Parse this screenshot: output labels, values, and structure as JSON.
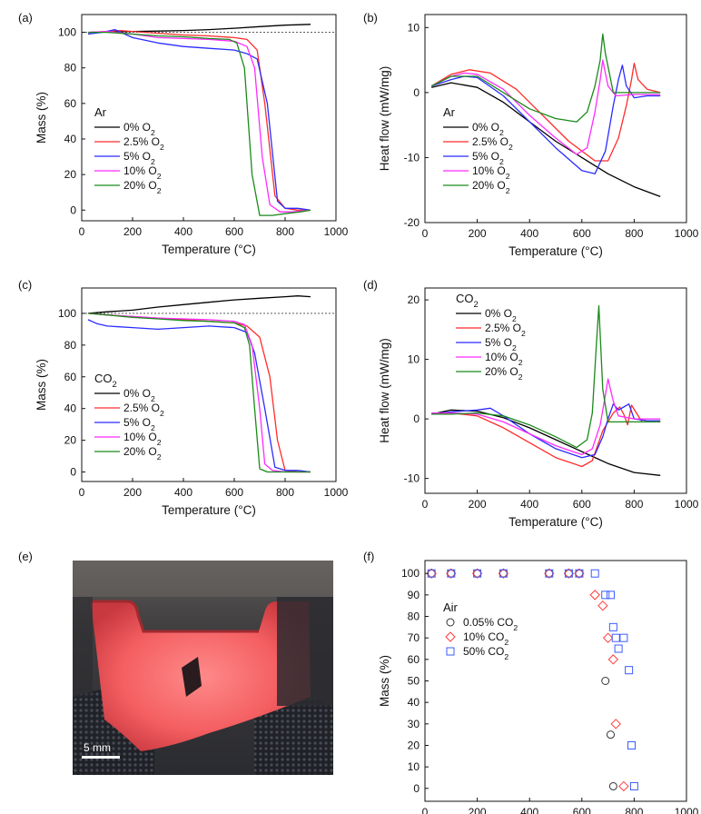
{
  "colors": {
    "s0": "#000000",
    "s1": "#ff2b2b",
    "s2": "#2b2bff",
    "s3": "#ff2bff",
    "s4": "#1a8a1a",
    "open_red": "#ff3b3b",
    "open_blue": "#3b5bff",
    "open_black": "#333333"
  },
  "scalebar": "5 mm",
  "chart_data": [
    {
      "panel": "(a)",
      "type": "line",
      "xlabel": "Temperature (°C)",
      "ylabel": "Mass (%)",
      "xlim": [
        0,
        1000
      ],
      "ylim": [
        -6,
        110
      ],
      "xticks": [
        0,
        200,
        400,
        600,
        800,
        1000
      ],
      "yticks": [
        0,
        20,
        40,
        60,
        80,
        100
      ],
      "reference_line": 100,
      "legend_title": "Ar",
      "legend_position": "center-left",
      "series": [
        {
          "name": "0% O₂",
          "color": "#000000",
          "x": [
            25,
            100,
            200,
            300,
            400,
            500,
            600,
            700,
            800,
            900
          ],
          "y": [
            100,
            100.3,
            100.5,
            100.7,
            101,
            101.5,
            102.3,
            103.2,
            104,
            104.5
          ]
        },
        {
          "name": "2.5% O₂",
          "color": "#ff2b2b",
          "x": [
            25,
            100,
            150,
            250,
            400,
            500,
            600,
            650,
            690,
            720,
            760,
            800,
            850,
            900
          ],
          "y": [
            100,
            100.5,
            101,
            100,
            98.5,
            98,
            97,
            96,
            90,
            60,
            8,
            1,
            0,
            0
          ]
        },
        {
          "name": "5% O₂",
          "color": "#2b2bff",
          "x": [
            25,
            80,
            130,
            200,
            300,
            400,
            500,
            600,
            650,
            690,
            730,
            770,
            800,
            850,
            900
          ],
          "y": [
            99,
            100,
            101.5,
            97,
            94,
            92,
            91,
            90,
            88,
            85,
            60,
            5,
            1,
            1,
            0
          ]
        },
        {
          "name": "10% O₂",
          "color": "#ff2bff",
          "x": [
            25,
            100,
            200,
            300,
            400,
            500,
            600,
            650,
            680,
            710,
            740,
            780,
            830,
            900
          ],
          "y": [
            100,
            100.5,
            99,
            97,
            96.5,
            96,
            95,
            92,
            80,
            30,
            3,
            -1,
            -1,
            0
          ]
        },
        {
          "name": "20% O₂",
          "color": "#1a8a1a",
          "x": [
            25,
            100,
            200,
            300,
            400,
            500,
            580,
            610,
            640,
            670,
            700,
            750,
            800,
            860,
            900
          ],
          "y": [
            100,
            100,
            99,
            98,
            97.5,
            96.5,
            96,
            94,
            80,
            20,
            -3,
            -3,
            -2,
            -1,
            0
          ]
        }
      ]
    },
    {
      "panel": "(b)",
      "type": "line",
      "xlabel": "Temperature (°C)",
      "ylabel": "Heat flow (mW/mg)",
      "xlim": [
        0,
        1000
      ],
      "ylim": [
        -20,
        12
      ],
      "xticks": [
        0,
        200,
        400,
        600,
        800,
        1000
      ],
      "yticks": [
        -20,
        -10,
        0,
        10
      ],
      "legend_title": "Ar",
      "legend_position": "bottom-left",
      "series": [
        {
          "name": "0% O₂",
          "color": "#000000",
          "x": [
            25,
            100,
            200,
            300,
            400,
            500,
            600,
            700,
            800,
            900
          ],
          "y": [
            0.8,
            1.5,
            0.8,
            -1.5,
            -4.5,
            -7.5,
            -10,
            -12.5,
            -14.5,
            -16
          ]
        },
        {
          "name": "2.5% O₂",
          "color": "#ff2b2b",
          "x": [
            25,
            100,
            170,
            250,
            350,
            450,
            550,
            650,
            700,
            740,
            770,
            790,
            800,
            815,
            850,
            900
          ],
          "y": [
            1,
            2.8,
            3.5,
            3,
            0.5,
            -3.5,
            -7.5,
            -10.5,
            -10.5,
            -7,
            -2,
            2,
            4.5,
            2,
            0.5,
            0
          ]
        },
        {
          "name": "5% O₂",
          "color": "#2b2bff",
          "x": [
            25,
            100,
            150,
            200,
            300,
            400,
            500,
            600,
            650,
            690,
            720,
            740,
            755,
            770,
            800,
            850,
            900
          ],
          "y": [
            1,
            2,
            2.5,
            2.3,
            -0.5,
            -4.5,
            -8.5,
            -12,
            -12.5,
            -9,
            -2,
            2,
            4.2,
            1,
            -0.8,
            -0.5,
            -0.5
          ]
        },
        {
          "name": "10% O₂",
          "color": "#ff2bff",
          "x": [
            25,
            100,
            150,
            200,
            300,
            400,
            500,
            580,
            620,
            650,
            670,
            680,
            700,
            730,
            800,
            900
          ],
          "y": [
            1,
            2.5,
            3,
            2.8,
            0.5,
            -3.5,
            -7,
            -9.5,
            -8.5,
            -3,
            2,
            5,
            1,
            -0.5,
            -0.3,
            -0.3
          ]
        },
        {
          "name": "20% O₂",
          "color": "#1a8a1a",
          "x": [
            25,
            100,
            200,
            300,
            400,
            500,
            580,
            620,
            650,
            670,
            680,
            690,
            720,
            800,
            900
          ],
          "y": [
            1,
            2.5,
            2.5,
            0,
            -2.5,
            -4,
            -4.5,
            -3,
            1,
            5,
            9,
            6,
            0,
            0,
            0
          ]
        }
      ]
    },
    {
      "panel": "(c)",
      "type": "line",
      "xlabel": "Temperature (°C)",
      "ylabel": "Mass (%)",
      "xlim": [
        0,
        1000
      ],
      "ylim": [
        -6,
        116
      ],
      "xticks": [
        0,
        200,
        400,
        600,
        800,
        1000
      ],
      "yticks": [
        0,
        20,
        40,
        60,
        80,
        100
      ],
      "reference_line": 100,
      "legend_title": "CO₂",
      "legend_position": "bottom-left",
      "series": [
        {
          "name": "0% O₂",
          "color": "#000000",
          "x": [
            25,
            100,
            200,
            300,
            400,
            500,
            600,
            700,
            800,
            850,
            900
          ],
          "y": [
            100,
            101,
            102,
            104,
            105.5,
            107,
            108.5,
            109.5,
            110.5,
            111,
            110.5
          ]
        },
        {
          "name": "2.5% O₂",
          "color": "#ff2b2b",
          "x": [
            25,
            100,
            200,
            300,
            400,
            500,
            600,
            650,
            700,
            740,
            770,
            800,
            850,
            900
          ],
          "y": [
            100,
            99,
            98,
            97,
            96,
            95,
            94,
            92,
            85,
            60,
            20,
            1,
            0,
            0
          ]
        },
        {
          "name": "5% O₂",
          "color": "#2b2bff",
          "x": [
            25,
            60,
            100,
            200,
            300,
            400,
            500,
            600,
            650,
            680,
            720,
            760,
            800,
            850,
            900
          ],
          "y": [
            96,
            93.5,
            92,
            91,
            90,
            91,
            92,
            91,
            88,
            75,
            40,
            3,
            1,
            1,
            0
          ]
        },
        {
          "name": "10% O₂",
          "color": "#ff2bff",
          "x": [
            25,
            100,
            200,
            300,
            400,
            500,
            600,
            640,
            670,
            700,
            720,
            750,
            800,
            900
          ],
          "y": [
            100,
            99,
            98,
            97,
            96.5,
            96,
            95,
            93,
            80,
            40,
            5,
            1,
            0,
            0
          ]
        },
        {
          "name": "20% O₂",
          "color": "#1a8a1a",
          "x": [
            25,
            100,
            200,
            300,
            400,
            500,
            600,
            640,
            660,
            680,
            700,
            730,
            800,
            900
          ],
          "y": [
            100,
            99,
            97.5,
            96.5,
            95.5,
            95,
            94,
            91,
            80,
            40,
            2,
            0,
            0,
            0
          ]
        }
      ]
    },
    {
      "panel": "(d)",
      "type": "line",
      "xlabel": "Temperature (°C)",
      "ylabel": "Heat flow (mW/mg)",
      "xlim": [
        0,
        1000
      ],
      "ylim": [
        -12.5,
        22
      ],
      "xticks": [
        0,
        200,
        400,
        600,
        800,
        1000
      ],
      "yticks": [
        -10,
        0,
        10,
        20
      ],
      "legend_title": "CO₂",
      "legend_position": "top-left",
      "series": [
        {
          "name": "0% O₂",
          "color": "#000000",
          "x": [
            25,
            100,
            200,
            300,
            400,
            500,
            600,
            700,
            800,
            900
          ],
          "y": [
            0.8,
            1.5,
            1.3,
            0.2,
            -1.5,
            -3.5,
            -5.5,
            -7.5,
            -9,
            -9.5
          ]
        },
        {
          "name": "2.5% O₂",
          "color": "#ff2b2b",
          "x": [
            25,
            100,
            200,
            300,
            400,
            500,
            600,
            640,
            680,
            720,
            745,
            760,
            775,
            790,
            830,
            900
          ],
          "y": [
            0.8,
            1,
            0.5,
            -1.5,
            -4,
            -6.5,
            -8,
            -7,
            -2,
            1,
            2,
            0.8,
            -1,
            2.3,
            -0.5,
            -0.5
          ]
        },
        {
          "name": "5% O₂",
          "color": "#2b2bff",
          "x": [
            25,
            100,
            200,
            250,
            300,
            400,
            500,
            600,
            650,
            680,
            700,
            720,
            740,
            760,
            780,
            800,
            850,
            900
          ],
          "y": [
            0.8,
            1.2,
            1.5,
            1.8,
            0.5,
            -2.5,
            -5,
            -6.5,
            -6,
            -3,
            0,
            2.5,
            1.5,
            2,
            2.5,
            0,
            -0.3,
            -0.3
          ]
        },
        {
          "name": "10% O₂",
          "color": "#ff2bff",
          "x": [
            25,
            100,
            200,
            300,
            400,
            500,
            600,
            640,
            670,
            690,
            700,
            720,
            740,
            800,
            900
          ],
          "y": [
            1,
            1,
            0.8,
            -0.5,
            -2.5,
            -4.5,
            -6,
            -5,
            -1,
            4,
            6.7,
            3,
            0.5,
            0,
            0
          ]
        },
        {
          "name": "20% O₂",
          "color": "#1a8a1a",
          "x": [
            25,
            100,
            200,
            300,
            400,
            500,
            580,
            620,
            640,
            655,
            665,
            680,
            700,
            750,
            800,
            900
          ],
          "y": [
            0.8,
            0.8,
            1,
            0.5,
            -1,
            -3,
            -4.8,
            -3.5,
            1,
            12,
            19,
            5,
            -0.5,
            -0.5,
            -0.5,
            -0.5
          ]
        }
      ]
    },
    {
      "panel": "(f)",
      "type": "scatter",
      "xlabel": "Temperature (°C)",
      "ylabel": "Mass (%)",
      "xlim": [
        0,
        1000
      ],
      "ylim": [
        -6,
        106
      ],
      "xticks": [
        0,
        200,
        400,
        600,
        800,
        1000
      ],
      "yticks": [
        0,
        10,
        20,
        30,
        40,
        50,
        60,
        70,
        80,
        90,
        100
      ],
      "legend_title": "Air",
      "legend_position": "center-left",
      "series": [
        {
          "name": "0.05% CO₂",
          "marker": "circle",
          "color": "#333333",
          "x": [
            25,
            100,
            200,
            300,
            475,
            550,
            590,
            690,
            710,
            720
          ],
          "y": [
            100,
            100,
            100,
            100,
            100,
            100,
            100,
            50,
            25,
            1
          ]
        },
        {
          "name": "10% CO₂",
          "marker": "diamond",
          "color": "#ff3b3b",
          "x": [
            25,
            100,
            200,
            300,
            475,
            550,
            590,
            650,
            680,
            700,
            720,
            730,
            760
          ],
          "y": [
            100,
            100,
            100,
            100,
            100,
            100,
            100,
            90,
            85,
            70,
            60,
            30,
            1
          ]
        },
        {
          "name": "50% CO₂",
          "marker": "square",
          "color": "#3b5bff",
          "x": [
            25,
            100,
            200,
            300,
            475,
            550,
            590,
            650,
            690,
            710,
            720,
            730,
            740,
            760,
            780,
            790,
            800
          ],
          "y": [
            100,
            100,
            100,
            100,
            100,
            100,
            100,
            100,
            90,
            90,
            75,
            70,
            65,
            70,
            55,
            20,
            1
          ]
        }
      ]
    }
  ],
  "panels": {
    "a": {
      "label": "(a)",
      "xlabel": "Temperature (°C)",
      "ylabel": "Mass (%)",
      "legend_title": "Ar"
    },
    "b": {
      "label": "(b)",
      "xlabel": "Temperature (°C)",
      "ylabel": "Heat flow (mW/mg)",
      "legend_title": "Ar"
    },
    "c": {
      "label": "(c)",
      "xlabel": "Temperature (°C)",
      "ylabel": "Mass (%)",
      "legend_title": "CO₂"
    },
    "d": {
      "label": "(d)",
      "xlabel": "Temperature (°C)",
      "ylabel": "Heat flow (mW/mg)",
      "legend_title": "CO₂"
    },
    "e": {
      "label": "(e)"
    },
    "f": {
      "label": "(f)",
      "xlabel": "Temperature (°C)",
      "ylabel": "Mass (%)",
      "legend_title": "Air"
    }
  }
}
